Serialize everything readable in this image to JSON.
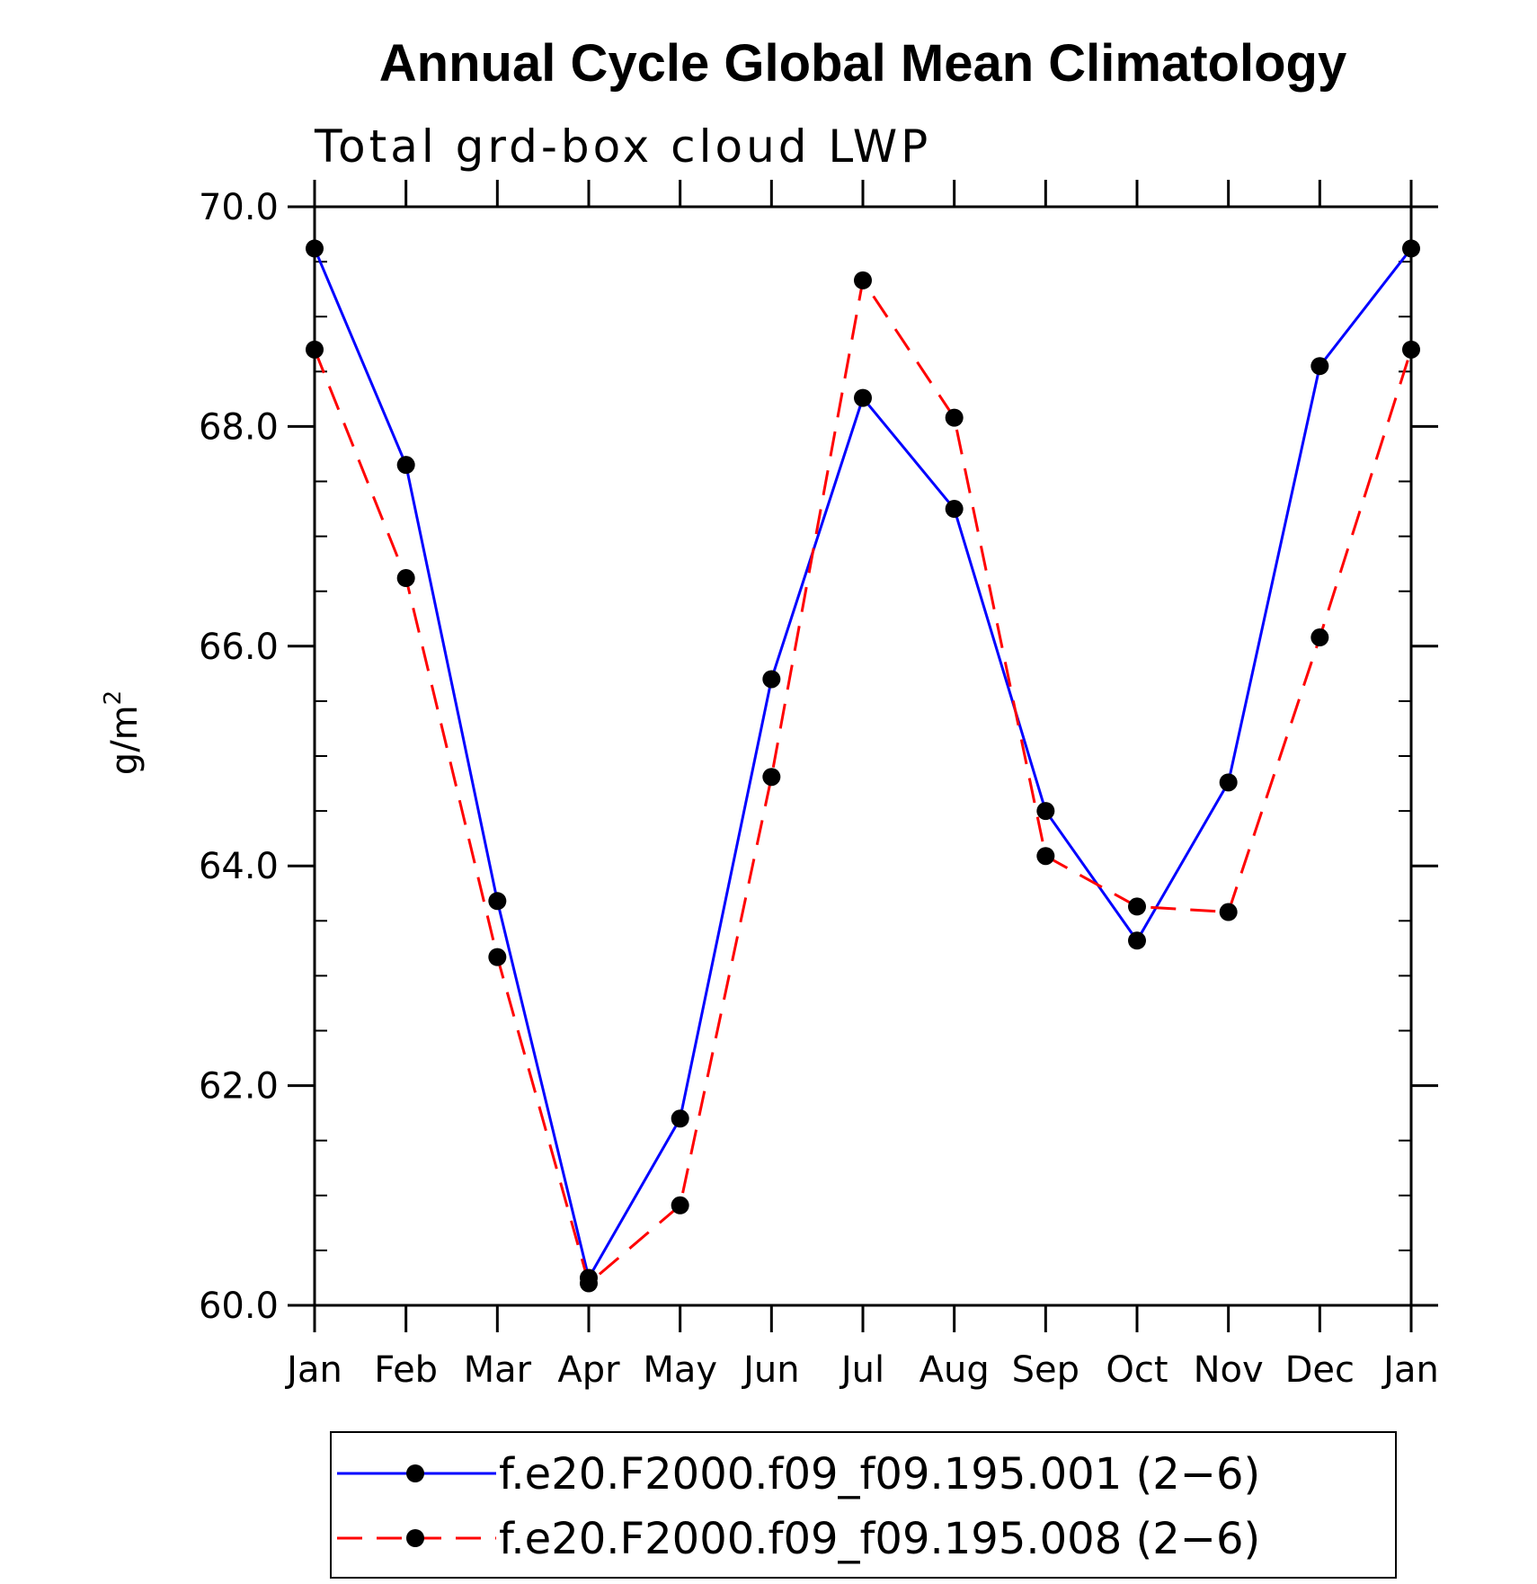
{
  "chart_data": {
    "type": "line",
    "title": "Annual Cycle Global Mean Climatology",
    "subtitle": "Total grd-box cloud LWP",
    "ylabel": "g/m",
    "ylabel_superscript": "2",
    "xlabel": "",
    "categories": [
      "Jan",
      "Feb",
      "Mar",
      "Apr",
      "May",
      "Jun",
      "Jul",
      "Aug",
      "Sep",
      "Oct",
      "Nov",
      "Dec",
      "Jan"
    ],
    "ylim": [
      60.0,
      70.0
    ],
    "yticks": [
      "60.0",
      "62.0",
      "64.0",
      "66.0",
      "68.0",
      "70.0"
    ],
    "grid": false,
    "legend_position": "bottom",
    "series": [
      {
        "name": "f.e20.F2000.f09_f09.195.001 (2−6)",
        "color": "#0000ff",
        "line_style": "solid",
        "marker": "filled-circle",
        "values": [
          69.62,
          67.65,
          63.68,
          60.25,
          61.7,
          65.7,
          68.26,
          67.25,
          64.5,
          63.32,
          64.76,
          68.55,
          69.62
        ]
      },
      {
        "name": "f.e20.F2000.f09_f09.195.008 (2−6)",
        "color": "#ff0000",
        "line_style": "dashed",
        "marker": "filled-circle",
        "values": [
          68.7,
          66.62,
          63.17,
          60.2,
          60.91,
          64.81,
          69.33,
          68.08,
          64.09,
          63.63,
          63.58,
          66.08,
          68.7
        ]
      }
    ]
  }
}
